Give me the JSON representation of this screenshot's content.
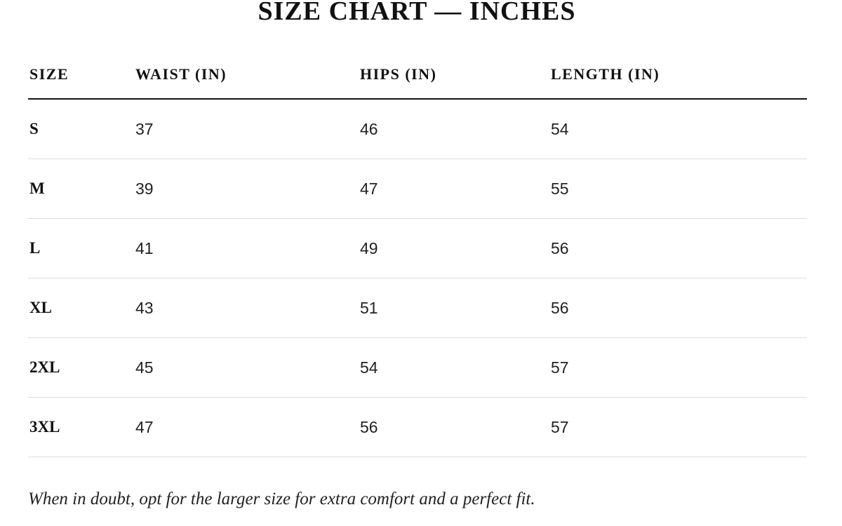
{
  "title": "SIZE CHART — INCHES",
  "table": {
    "headers": [
      "SIZE",
      "WAIST (IN)",
      "HIPS (IN)",
      "LENGTH (IN)"
    ],
    "rows": [
      [
        "S",
        37,
        46,
        54
      ],
      [
        "M",
        39,
        47,
        55
      ],
      [
        "L",
        41,
        49,
        56
      ],
      [
        "XL",
        43,
        51,
        56
      ],
      [
        "2XL",
        45,
        54,
        57
      ],
      [
        "3XL",
        47,
        56,
        57
      ]
    ]
  },
  "note": "When in doubt, opt for the larger size for extra comfort and a perfect fit."
}
